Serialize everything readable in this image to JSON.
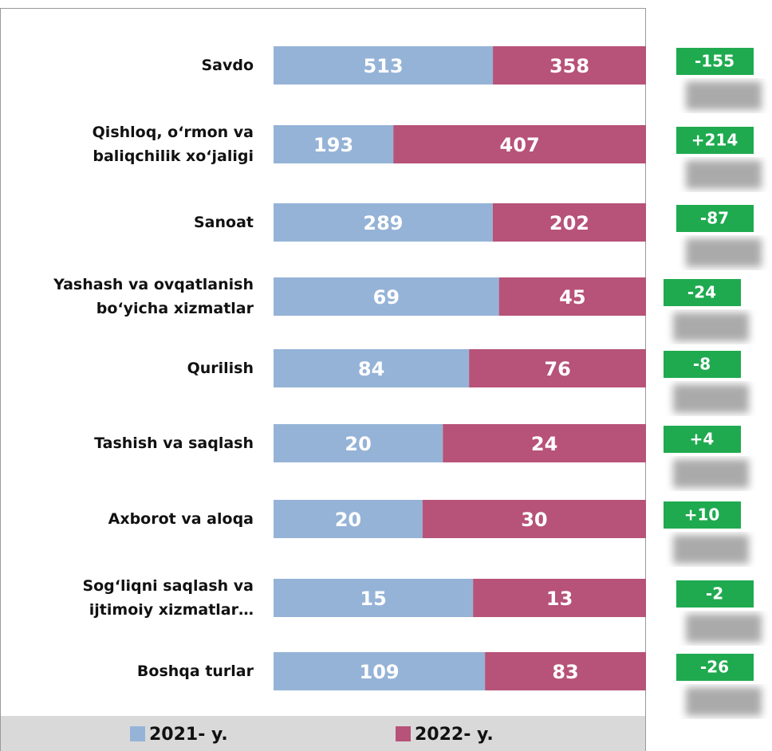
{
  "chart_data": {
    "type": "stacked-share-bar",
    "categories": [
      "Savdo",
      "Qishloq, o‘rmon va\nbaliqchilik  xo‘jaligi",
      "Sanoat",
      "Yashash va ovqatlanish\nbo‘yicha xizmatlar",
      "Qurilish",
      "Tashish va saqlash",
      "Axborot va aloqa",
      "Sog‘liqni saqlash va\nijtimoiy xizmatlar…",
      "Boshqa turlar"
    ],
    "series": [
      {
        "name": "2021- y.",
        "color": "#95b3d7",
        "values": [
          513,
          193,
          289,
          69,
          84,
          20,
          20,
          15,
          109
        ]
      },
      {
        "name": "2022- y.",
        "color": "#b75278",
        "values": [
          358,
          407,
          202,
          45,
          76,
          24,
          30,
          13,
          83
        ]
      }
    ],
    "difference": {
      "color": "#1faa4f",
      "values": [
        -155,
        214,
        -87,
        -24,
        -8,
        4,
        10,
        -2,
        -26
      ],
      "value_labels": [
        "-155",
        "+214",
        "-87",
        "-24",
        "-8",
        "+4",
        "+10",
        "-2",
        "-26"
      ]
    }
  }
}
